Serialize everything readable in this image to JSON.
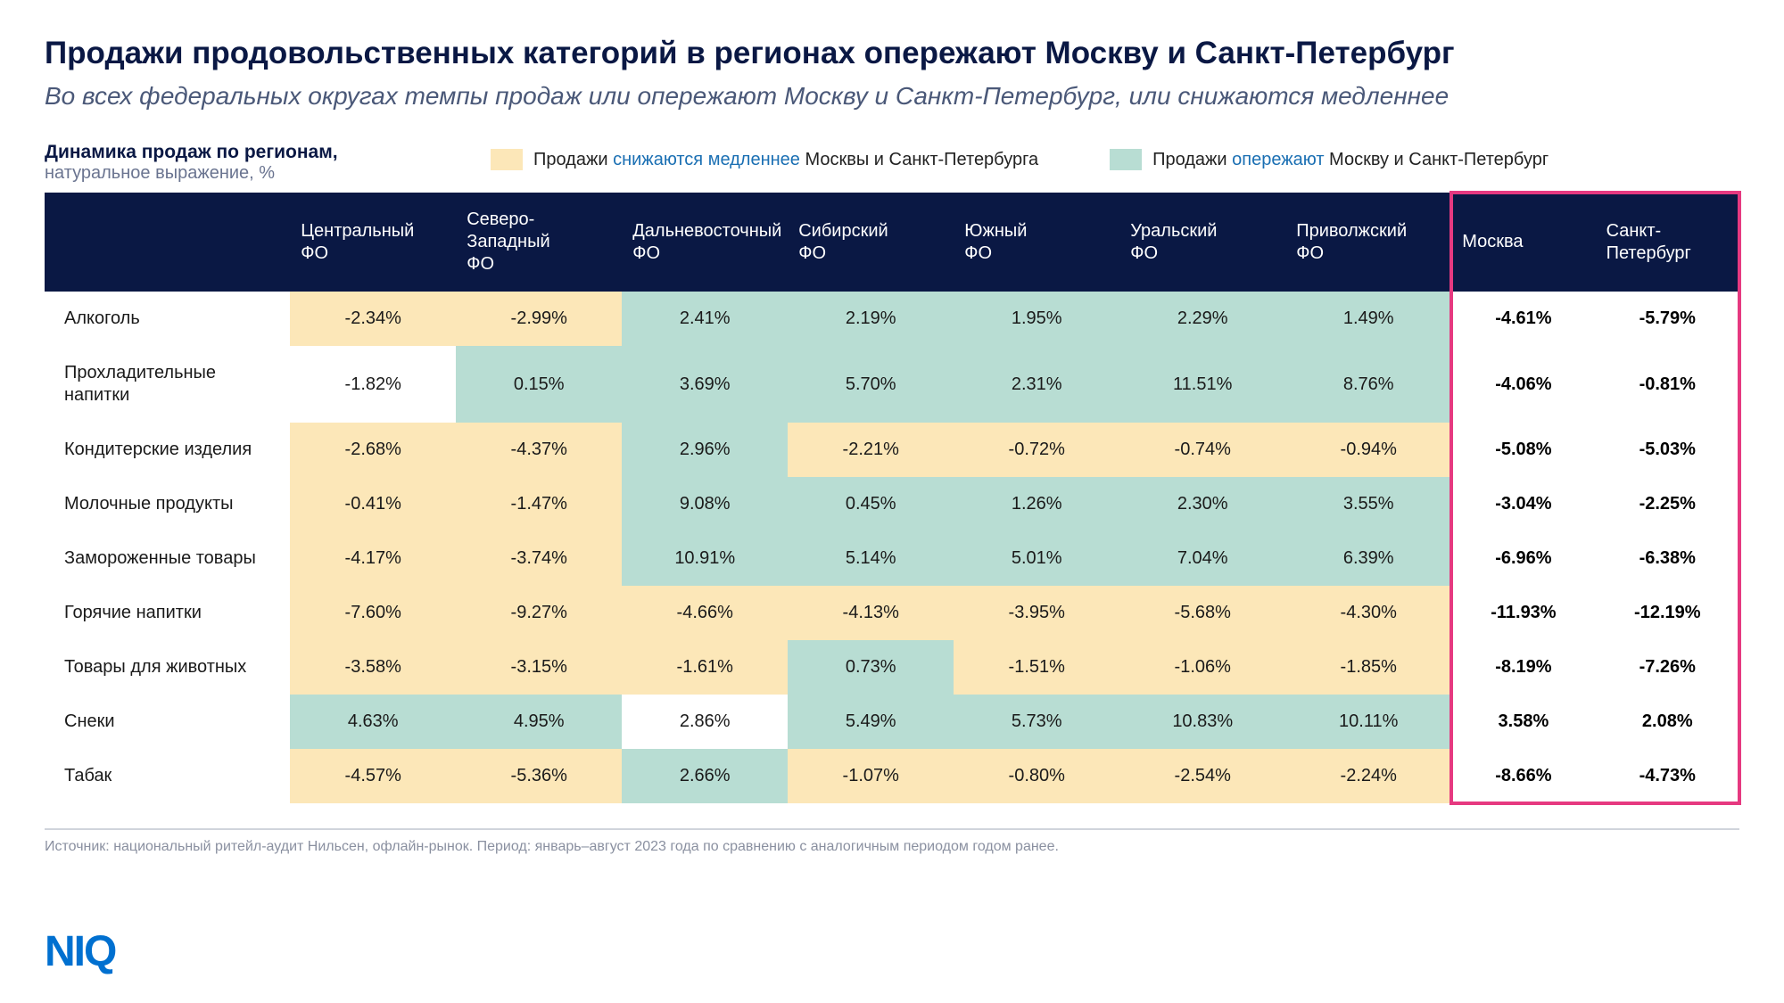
{
  "title": "Продажи продовольственных категорий в регионах опережают Москву и Санкт-Петербург",
  "subtitle": "Во всех федеральных округах темпы продаж или опережают Москву и Санкт-Петербург, или снижаются медленнее",
  "legend": {
    "heading_line1": "Динамика продаж по регионам,",
    "heading_line2": "натуральное выражение, %",
    "slower": {
      "text_pre": "Продажи ",
      "text_hl": "снижаются медленнее",
      "text_post": " Москвы и Санкт-Петербурга",
      "color": "#fce7b8"
    },
    "ahead": {
      "text_pre": "Продажи ",
      "text_hl": "опережают",
      "text_post": " Москву и Санкт-Петербург",
      "color": "#b8ddd3"
    }
  },
  "colors": {
    "header_bg": "#0a1844",
    "header_fg": "#ffffff",
    "cell_slower": "#fce7b8",
    "cell_ahead": "#b8ddd3",
    "cell_plain": "#ffffff",
    "highlight_border": "#e63980",
    "logo": "#0070d0"
  },
  "table": {
    "region_columns": [
      "Центральный ФО",
      "Северо-Западный ФО",
      "Дальневосточный ФО",
      "Сибирский ФО",
      "Южный ФО",
      "Уральский ФО",
      "Приволжский ФО"
    ],
    "reference_columns": [
      "Москва",
      "Санкт-Петербург"
    ],
    "rows": [
      {
        "label": "Алкоголь",
        "cells": [
          {
            "v": "-2.34%",
            "s": "slower"
          },
          {
            "v": "-2.99%",
            "s": "slower"
          },
          {
            "v": "2.41%",
            "s": "ahead"
          },
          {
            "v": "2.19%",
            "s": "ahead"
          },
          {
            "v": "1.95%",
            "s": "ahead"
          },
          {
            "v": "2.29%",
            "s": "ahead"
          },
          {
            "v": "1.49%",
            "s": "ahead"
          }
        ],
        "ref": [
          "-4.61%",
          "-5.79%"
        ]
      },
      {
        "label": "Прохладительные напитки",
        "cells": [
          {
            "v": "-1.82%",
            "s": "plain"
          },
          {
            "v": "0.15%",
            "s": "ahead"
          },
          {
            "v": "3.69%",
            "s": "ahead"
          },
          {
            "v": "5.70%",
            "s": "ahead"
          },
          {
            "v": "2.31%",
            "s": "ahead"
          },
          {
            "v": "11.51%",
            "s": "ahead"
          },
          {
            "v": "8.76%",
            "s": "ahead"
          }
        ],
        "ref": [
          "-4.06%",
          "-0.81%"
        ]
      },
      {
        "label": "Кондитерские изделия",
        "cells": [
          {
            "v": "-2.68%",
            "s": "slower"
          },
          {
            "v": "-4.37%",
            "s": "slower"
          },
          {
            "v": "2.96%",
            "s": "ahead"
          },
          {
            "v": "-2.21%",
            "s": "slower"
          },
          {
            "v": "-0.72%",
            "s": "slower"
          },
          {
            "v": "-0.74%",
            "s": "slower"
          },
          {
            "v": "-0.94%",
            "s": "slower"
          }
        ],
        "ref": [
          "-5.08%",
          "-5.03%"
        ]
      },
      {
        "label": "Молочные продукты",
        "cells": [
          {
            "v": "-0.41%",
            "s": "slower"
          },
          {
            "v": "-1.47%",
            "s": "slower"
          },
          {
            "v": "9.08%",
            "s": "ahead"
          },
          {
            "v": "0.45%",
            "s": "ahead"
          },
          {
            "v": "1.26%",
            "s": "ahead"
          },
          {
            "v": "2.30%",
            "s": "ahead"
          },
          {
            "v": "3.55%",
            "s": "ahead"
          }
        ],
        "ref": [
          "-3.04%",
          "-2.25%"
        ]
      },
      {
        "label": "Замороженные товары",
        "cells": [
          {
            "v": "-4.17%",
            "s": "slower"
          },
          {
            "v": "-3.74%",
            "s": "slower"
          },
          {
            "v": "10.91%",
            "s": "ahead"
          },
          {
            "v": "5.14%",
            "s": "ahead"
          },
          {
            "v": "5.01%",
            "s": "ahead"
          },
          {
            "v": "7.04%",
            "s": "ahead"
          },
          {
            "v": "6.39%",
            "s": "ahead"
          }
        ],
        "ref": [
          "-6.96%",
          "-6.38%"
        ]
      },
      {
        "label": "Горячие напитки",
        "cells": [
          {
            "v": "-7.60%",
            "s": "slower"
          },
          {
            "v": "-9.27%",
            "s": "slower"
          },
          {
            "v": "-4.66%",
            "s": "slower"
          },
          {
            "v": "-4.13%",
            "s": "slower"
          },
          {
            "v": "-3.95%",
            "s": "slower"
          },
          {
            "v": "-5.68%",
            "s": "slower"
          },
          {
            "v": "-4.30%",
            "s": "slower"
          }
        ],
        "ref": [
          "-11.93%",
          "-12.19%"
        ]
      },
      {
        "label": "Товары для животных",
        "cells": [
          {
            "v": "-3.58%",
            "s": "slower"
          },
          {
            "v": "-3.15%",
            "s": "slower"
          },
          {
            "v": "-1.61%",
            "s": "slower"
          },
          {
            "v": "0.73%",
            "s": "ahead"
          },
          {
            "v": "-1.51%",
            "s": "slower"
          },
          {
            "v": "-1.06%",
            "s": "slower"
          },
          {
            "v": "-1.85%",
            "s": "slower"
          }
        ],
        "ref": [
          "-8.19%",
          "-7.26%"
        ]
      },
      {
        "label": "Снеки",
        "cells": [
          {
            "v": "4.63%",
            "s": "ahead"
          },
          {
            "v": "4.95%",
            "s": "ahead"
          },
          {
            "v": "2.86%",
            "s": "plain"
          },
          {
            "v": "5.49%",
            "s": "ahead"
          },
          {
            "v": "5.73%",
            "s": "ahead"
          },
          {
            "v": "10.83%",
            "s": "ahead"
          },
          {
            "v": "10.11%",
            "s": "ahead"
          }
        ],
        "ref": [
          "3.58%",
          "2.08%"
        ]
      },
      {
        "label": "Табак",
        "cells": [
          {
            "v": "-4.57%",
            "s": "slower"
          },
          {
            "v": "-5.36%",
            "s": "slower"
          },
          {
            "v": "2.66%",
            "s": "ahead"
          },
          {
            "v": "-1.07%",
            "s": "slower"
          },
          {
            "v": "-0.80%",
            "s": "slower"
          },
          {
            "v": "-2.54%",
            "s": "slower"
          },
          {
            "v": "-2.24%",
            "s": "slower"
          }
        ],
        "ref": [
          "-8.66%",
          "-4.73%"
        ]
      }
    ]
  },
  "footnote": "Источник: национальный ритейл-аудит Нильсен, офлайн-рынок. Период: январь–август 2023 года по сравнению с аналогичным периодом годом ранее.",
  "logo_text": "NIQ"
}
